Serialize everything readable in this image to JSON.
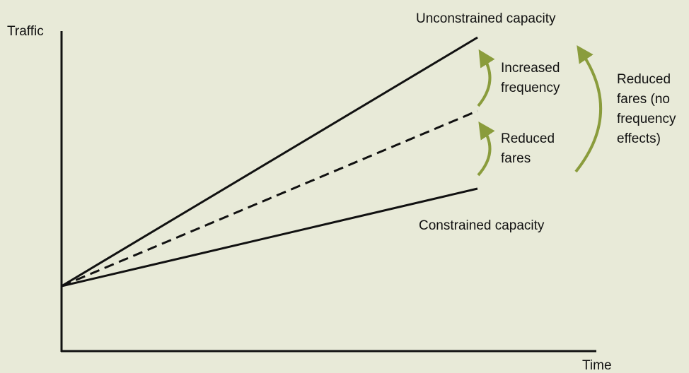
{
  "diagram": {
    "y_axis_label": "Traffic",
    "x_axis_label": "Time",
    "lines": {
      "unconstrained": "Unconstrained capacity",
      "constrained": "Constrained capacity"
    },
    "annotations": {
      "increased_frequency": [
        "Increased",
        "frequency"
      ],
      "reduced_fares": [
        "Reduced",
        "fares"
      ],
      "reduced_fares_no_frequency": [
        "Reduced",
        "fares (no",
        "frequency",
        "effects)"
      ]
    }
  }
}
